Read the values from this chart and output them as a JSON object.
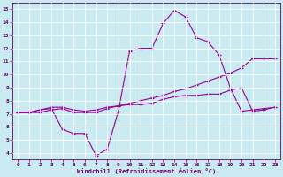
{
  "line1_x": [
    0,
    1,
    2,
    3,
    4,
    5,
    6,
    7,
    8,
    9,
    10,
    11,
    12,
    13,
    14,
    15,
    16,
    17,
    18,
    19,
    20,
    21,
    22,
    23
  ],
  "line1_y": [
    7.1,
    7.1,
    7.1,
    7.3,
    7.4,
    7.1,
    7.1,
    7.1,
    7.4,
    7.6,
    7.8,
    8.0,
    8.2,
    8.4,
    8.7,
    8.9,
    9.2,
    9.5,
    9.8,
    10.1,
    10.5,
    11.2,
    11.2,
    11.2
  ],
  "line2_x": [
    0,
    1,
    2,
    3,
    4,
    5,
    6,
    7,
    8,
    9,
    10,
    11,
    12,
    13,
    14,
    15,
    16,
    17,
    18,
    19,
    20,
    21,
    22,
    23
  ],
  "line2_y": [
    7.1,
    7.1,
    7.3,
    7.4,
    5.8,
    5.5,
    5.5,
    3.8,
    4.3,
    7.2,
    11.8,
    12.0,
    12.0,
    13.9,
    14.9,
    14.4,
    12.8,
    12.5,
    11.5,
    9.0,
    7.2,
    7.3,
    7.4,
    7.5
  ],
  "line3_x": [
    0,
    1,
    2,
    3,
    4,
    5,
    6,
    7,
    8,
    9,
    10,
    11,
    12,
    13,
    14,
    15,
    16,
    17,
    18,
    19,
    20,
    21,
    22,
    23
  ],
  "line3_y": [
    7.1,
    7.1,
    7.3,
    7.5,
    7.5,
    7.3,
    7.2,
    7.3,
    7.5,
    7.6,
    7.7,
    7.7,
    7.8,
    8.1,
    8.3,
    8.4,
    8.4,
    8.5,
    8.5,
    8.8,
    9.0,
    7.2,
    7.3,
    7.5
  ],
  "line_color": "#990099",
  "bg_color": "#c8eaf0",
  "grid_color": "#ffffff",
  "xlabel": "Windchill (Refroidissement éolien,°C)",
  "xlabel_color": "#660066",
  "tick_color": "#660066",
  "xlim": [
    -0.5,
    23.5
  ],
  "ylim": [
    3.5,
    15.5
  ],
  "xticks": [
    0,
    1,
    2,
    3,
    4,
    5,
    6,
    7,
    8,
    9,
    10,
    11,
    12,
    13,
    14,
    15,
    16,
    17,
    18,
    19,
    20,
    21,
    22,
    23
  ],
  "yticks": [
    4,
    5,
    6,
    7,
    8,
    9,
    10,
    11,
    12,
    13,
    14,
    15
  ],
  "marker": "+"
}
